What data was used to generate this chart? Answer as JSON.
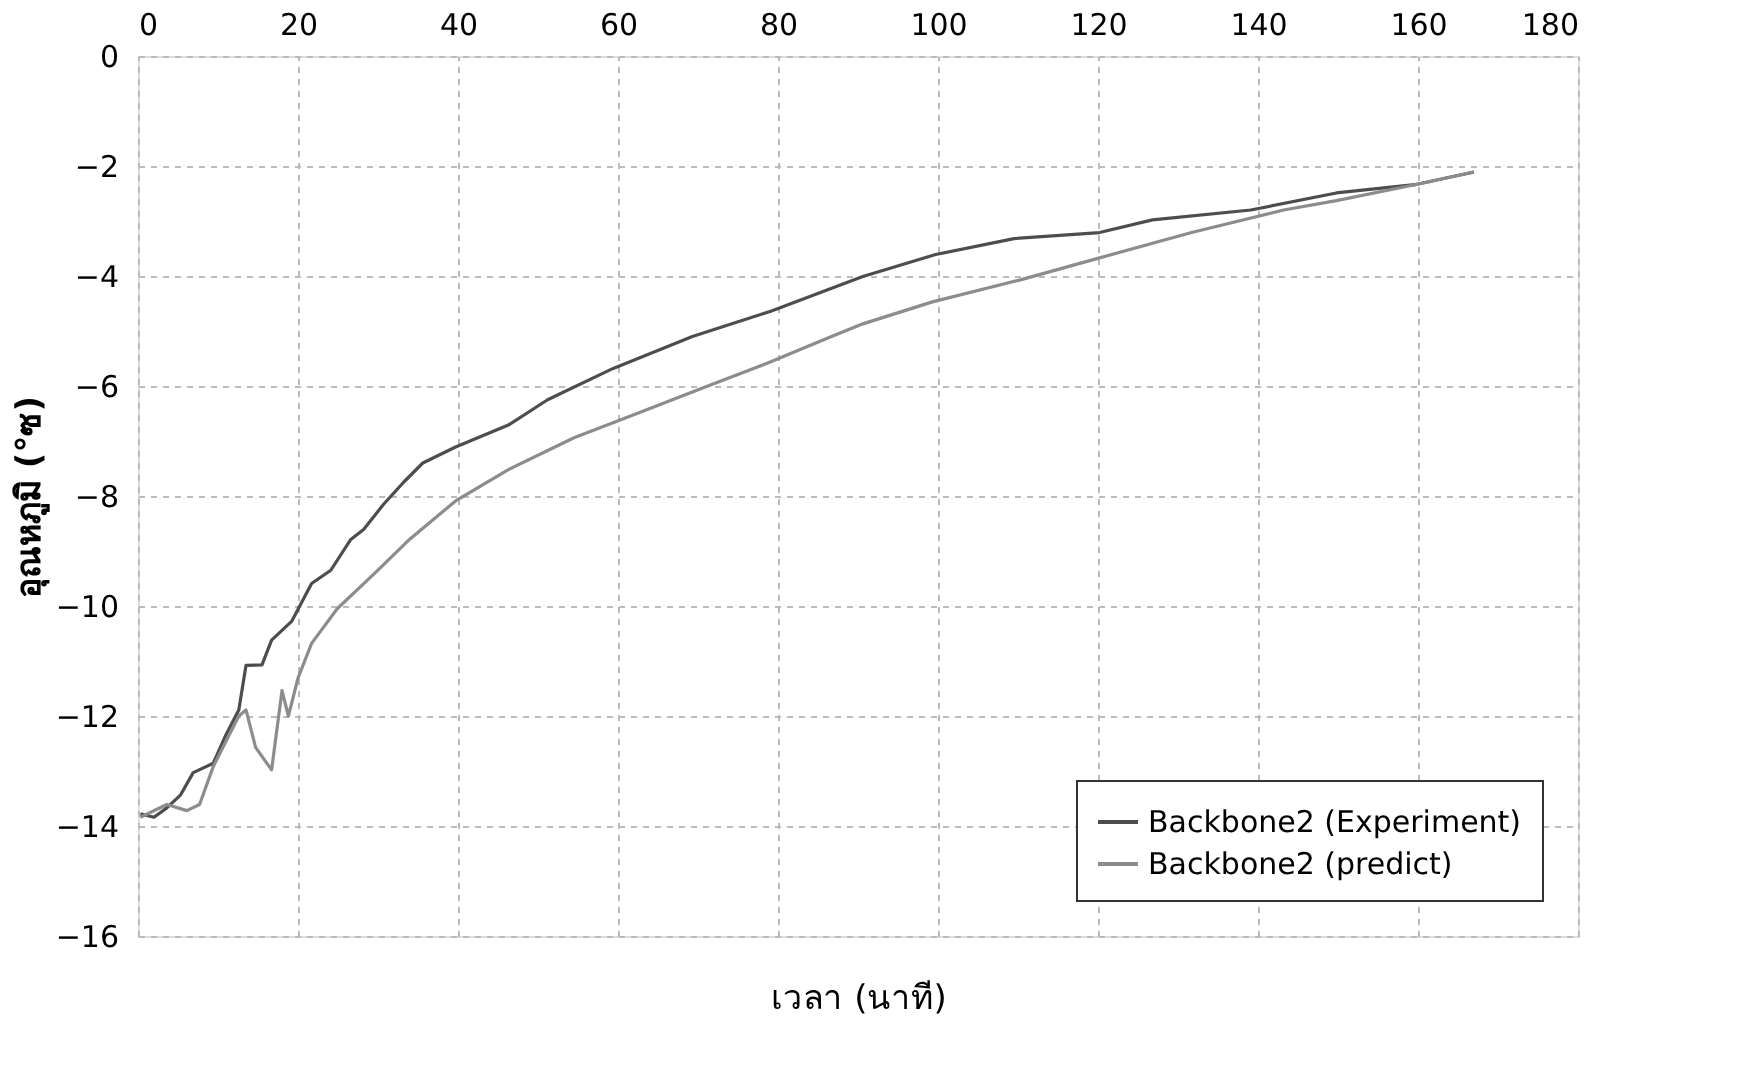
{
  "chart_data": {
    "type": "line",
    "xlabel": "เวลา (นาที)",
    "ylabel": "อุณหภูมิ (°ซ)",
    "xlim": [
      0,
      180
    ],
    "xticks": [
      0,
      20,
      40,
      60,
      80,
      100,
      120,
      140,
      160,
      180
    ],
    "ylim": [
      -16,
      0
    ],
    "yticks": [
      0,
      -2,
      -4,
      -6,
      -8,
      -10,
      -12,
      -14,
      -16
    ],
    "grid": true,
    "legend": "bottom right",
    "marker": "none",
    "line_style": "solid",
    "series": [
      {
        "name": "Backbone2 (Experiment)",
        "color": "#4d4d4d",
        "x": [
          0.3,
          2.0,
          3.6,
          5.3,
          6.9,
          9.4,
          11.0,
          12.6,
          13.5,
          15.5,
          16.7,
          19.2,
          21.7,
          24.1,
          26.6,
          28.2,
          30.7,
          33.2,
          35.6,
          39.7,
          46.3,
          51.2,
          59.4,
          69.3,
          79.1,
          90.6,
          99.7,
          109.5,
          120.2,
          126.8,
          139.1,
          149.8,
          159.6,
          167
        ],
        "values": [
          -13.78,
          -13.84,
          -13.67,
          -13.44,
          -13.03,
          -12.86,
          -12.34,
          -11.89,
          -11.08,
          -11.07,
          -10.62,
          -10.28,
          -9.59,
          -9.35,
          -8.79,
          -8.61,
          -8.15,
          -7.75,
          -7.4,
          -7.11,
          -6.71,
          -6.25,
          -5.68,
          -5.1,
          -4.64,
          -4.01,
          -3.61,
          -3.32,
          -3.21,
          -2.98,
          -2.8,
          -2.49,
          -2.34,
          -2.11
        ]
      },
      {
        "name": "Backbone2 (predict)",
        "color": "#8c8c8c",
        "x": [
          0.3,
          3.6,
          6.1,
          7.7,
          9.4,
          11.0,
          12.6,
          13.5,
          14.7,
          16.7,
          18.0,
          18.8,
          20.0,
          21.7,
          24.9,
          29.9,
          34.0,
          39.7,
          46.3,
          54.5,
          62.7,
          70.9,
          79.1,
          85.7,
          90.6,
          99.3,
          110.3,
          120.2,
          131.7,
          143.2,
          149.8,
          159.6,
          167
        ],
        "values": [
          -13.84,
          -13.61,
          -13.72,
          -13.61,
          -12.92,
          -12.46,
          -12.0,
          -11.89,
          -12.57,
          -12.98,
          -11.54,
          -12.0,
          -11.31,
          -10.68,
          -10.05,
          -9.36,
          -8.78,
          -8.09,
          -7.52,
          -6.94,
          -6.48,
          -6.02,
          -5.56,
          -5.16,
          -4.87,
          -4.47,
          -4.07,
          -3.67,
          -3.21,
          -2.8,
          -2.63,
          -2.34,
          -2.11
        ]
      }
    ]
  }
}
